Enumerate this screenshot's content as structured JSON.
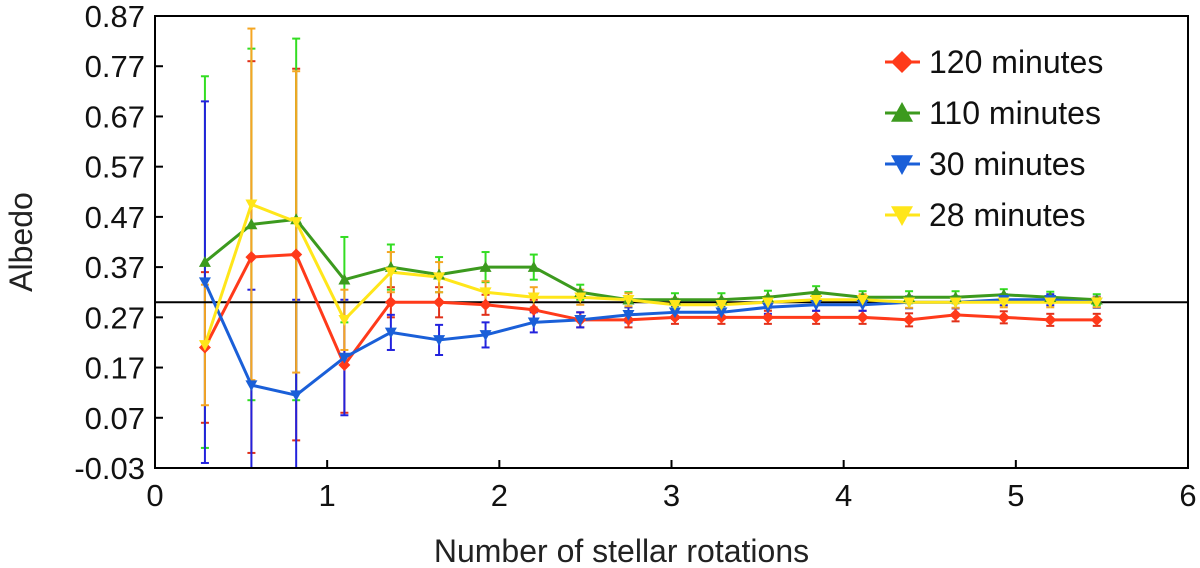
{
  "chart_data": {
    "type": "line",
    "title": "",
    "xlabel": "Number of stellar rotations",
    "ylabel": "Albedo",
    "xlim": [
      0,
      6
    ],
    "ylim": [
      -0.03,
      0.87
    ],
    "xticks": [
      "0",
      "1",
      "2",
      "3",
      "4",
      "5",
      "6"
    ],
    "yticks": [
      "-0.03",
      "0.07",
      "0.17",
      "0.27",
      "0.37",
      "0.47",
      "0.57",
      "0.67",
      "0.77",
      "0.87"
    ],
    "grid": false,
    "legend": "top-right",
    "reference_line": 0.3,
    "x": [
      0.29,
      0.56,
      0.82,
      1.1,
      1.37,
      1.65,
      1.92,
      2.2,
      2.47,
      2.75,
      3.02,
      3.29,
      3.56,
      3.84,
      4.11,
      4.38,
      4.65,
      4.93,
      5.2,
      5.47
    ],
    "series": [
      {
        "name": "120 minutes",
        "color": "#ff3a1a",
        "errcolor": "#e0301a",
        "marker": "diamond",
        "values": [
          0.21,
          0.39,
          0.395,
          0.175,
          0.3,
          0.3,
          0.295,
          0.285,
          0.265,
          0.265,
          0.27,
          0.27,
          0.27,
          0.27,
          0.27,
          0.265,
          0.275,
          0.27,
          0.265,
          0.265
        ],
        "errors": [
          0.15,
          0.39,
          0.37,
          0.095,
          0.03,
          0.03,
          0.02,
          0.02,
          0.015,
          0.015,
          0.013,
          0.013,
          0.013,
          0.013,
          0.013,
          0.013,
          0.013,
          0.012,
          0.012,
          0.012
        ]
      },
      {
        "name": "110 minutes",
        "color": "#3c9a1e",
        "errcolor": "#33dd22",
        "marker": "triangle-up",
        "values": [
          0.38,
          0.455,
          0.465,
          0.345,
          0.37,
          0.355,
          0.37,
          0.37,
          0.32,
          0.305,
          0.305,
          0.305,
          0.31,
          0.32,
          0.31,
          0.31,
          0.31,
          0.315,
          0.31,
          0.305
        ],
        "errors": [
          0.37,
          0.35,
          0.36,
          0.085,
          0.045,
          0.035,
          0.03,
          0.025,
          0.015,
          0.015,
          0.013,
          0.013,
          0.013,
          0.012,
          0.012,
          0.012,
          0.012,
          0.011,
          0.011,
          0.011
        ]
      },
      {
        "name": "30 minutes",
        "color": "#1a5fd8",
        "errcolor": "#2222dd",
        "marker": "triangle-down",
        "values": [
          0.34,
          0.135,
          0.115,
          0.19,
          0.24,
          0.225,
          0.235,
          0.26,
          0.265,
          0.275,
          0.28,
          0.28,
          0.29,
          0.295,
          0.295,
          0.3,
          0.3,
          0.305,
          0.305,
          0.3
        ],
        "errors": [
          0.36,
          0.19,
          0.19,
          0.115,
          0.035,
          0.03,
          0.025,
          0.02,
          0.015,
          0.015,
          0.013,
          0.013,
          0.013,
          0.012,
          0.012,
          0.012,
          0.012,
          0.011,
          0.011,
          0.011
        ]
      },
      {
        "name": "28 minutes",
        "color": "#ffe61a",
        "errcolor": "#f5a623",
        "marker": "triangle-down",
        "values": [
          0.215,
          0.495,
          0.46,
          0.265,
          0.36,
          0.35,
          0.32,
          0.31,
          0.31,
          0.305,
          0.295,
          0.295,
          0.3,
          0.305,
          0.305,
          0.3,
          0.3,
          0.3,
          0.3,
          0.3
        ],
        "errors": [
          0.12,
          0.35,
          0.3,
          0.06,
          0.04,
          0.03,
          0.022,
          0.02,
          0.015,
          0.013,
          0.012,
          0.012,
          0.012,
          0.011,
          0.011,
          0.011,
          0.011,
          0.01,
          0.01,
          0.01
        ]
      }
    ]
  }
}
